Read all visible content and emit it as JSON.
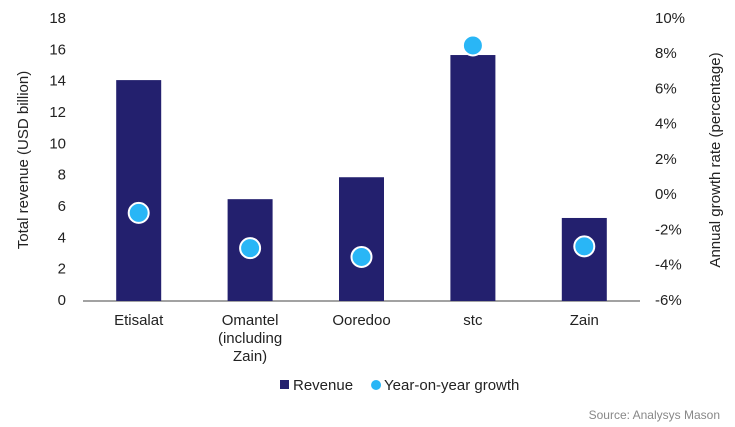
{
  "chart_data": {
    "type": "bar_dot",
    "categories": [
      "Etisalat",
      "Omantel (including Zain)",
      "Ooredoo",
      "stc",
      "Zain"
    ],
    "series": [
      {
        "name": "Revenue",
        "color": "#23206e",
        "values": [
          14.1,
          6.5,
          7.9,
          15.7,
          5.3
        ]
      },
      {
        "name": "Year-on-year growth",
        "color": "#29b6f6",
        "axis": "y2",
        "values": [
          -1.0,
          -3.0,
          -3.5,
          8.5,
          -2.9
        ]
      }
    ],
    "y_label": "Total revenue (USD billion)",
    "y2_label": "Annual growth rate (percentage)",
    "ylim": [
      0,
      18
    ],
    "yticks": [
      0,
      2,
      4,
      6,
      8,
      10,
      12,
      14,
      16,
      18
    ],
    "y2lim": [
      -6,
      10
    ],
    "y2ticks": [
      {
        "value": -6,
        "label": "-6%"
      },
      {
        "value": -4,
        "label": "-4%"
      },
      {
        "value": -2,
        "label": "-2%"
      },
      {
        "value": 0,
        "label": "0%"
      },
      {
        "value": 2,
        "label": "2%"
      },
      {
        "value": 4,
        "label": "4%"
      },
      {
        "value": 6,
        "label": "6%"
      },
      {
        "value": 8,
        "label": "8%"
      },
      {
        "value": 10,
        "label": "10%"
      }
    ],
    "source": "Source: Analysys Mason"
  }
}
